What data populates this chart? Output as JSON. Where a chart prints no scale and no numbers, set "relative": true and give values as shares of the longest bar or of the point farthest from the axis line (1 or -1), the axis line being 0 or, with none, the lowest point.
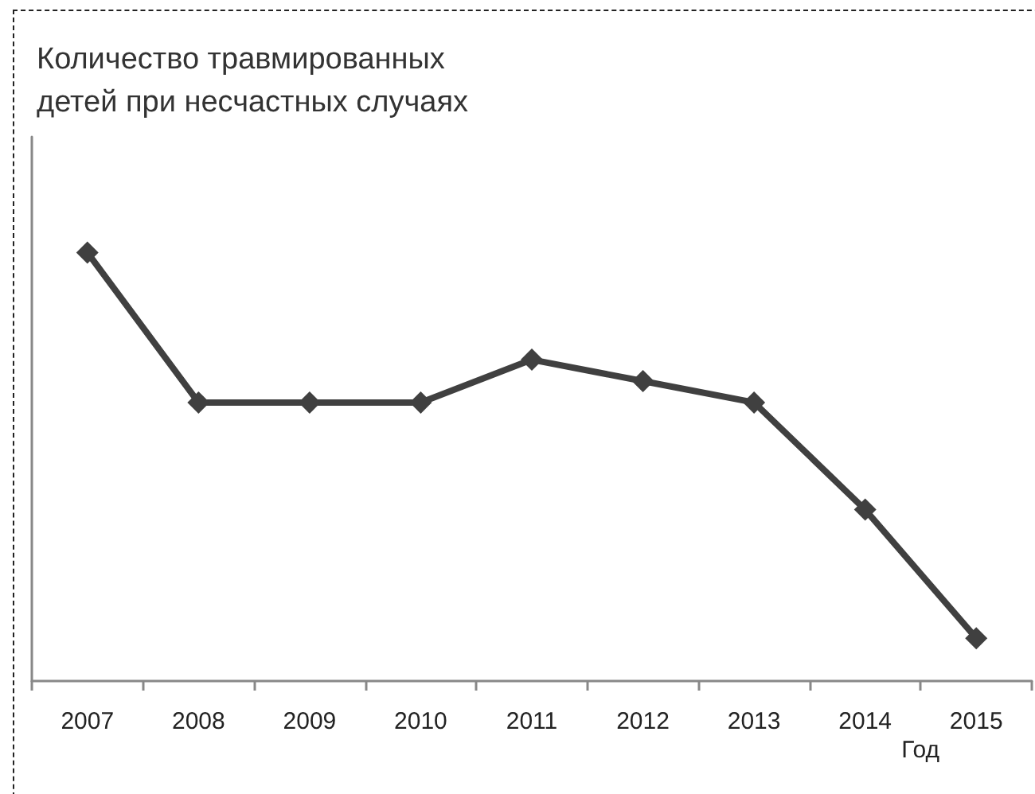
{
  "chart_data": {
    "type": "line",
    "title": "Количество травмированных детей при несчастных случаях",
    "xlabel": "Год",
    "categories": [
      "2007",
      "2008",
      "2009",
      "2010",
      "2011",
      "2012",
      "2013",
      "2014",
      "2015"
    ],
    "relative": true,
    "series": [
      {
        "color": "#404040",
        "values": [
          1,
          0.65,
          0.65,
          0.65,
          0.75,
          0.7,
          0.65,
          0.4,
          0.1
        ]
      }
    ],
    "marker": "diamond",
    "line_style": "solid"
  }
}
